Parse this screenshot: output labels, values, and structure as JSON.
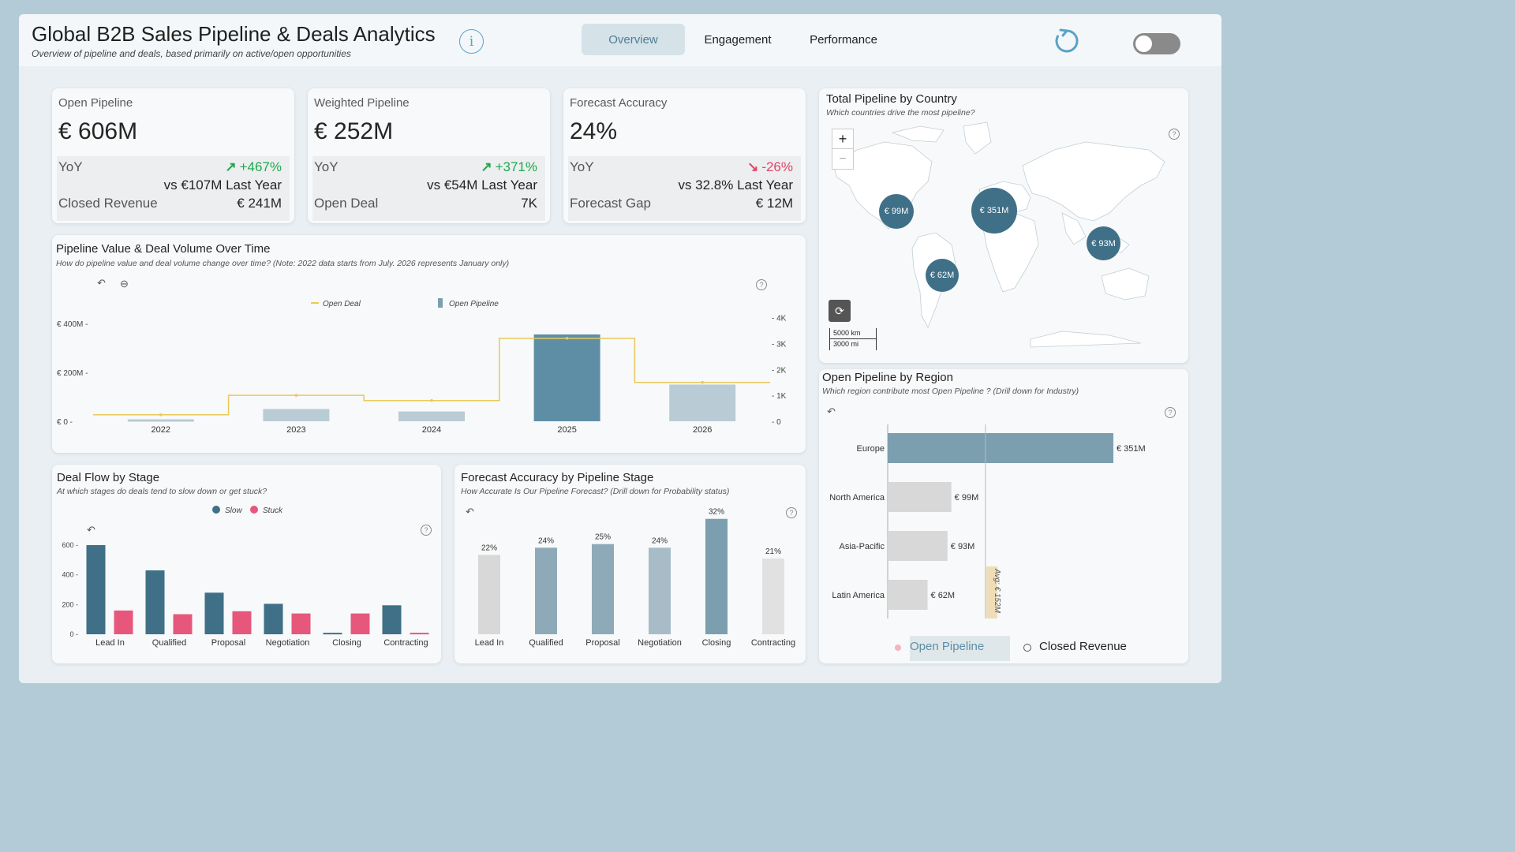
{
  "header": {
    "title": "Global B2B Sales Pipeline & Deals Analytics",
    "subtitle": "Overview of pipeline and deals, based primarily on active/open opportunities",
    "info_glyph": "i",
    "tabs": [
      {
        "label": "Overview",
        "active": true
      },
      {
        "label": "Engagement",
        "active": false
      },
      {
        "label": "Performance",
        "active": false
      }
    ],
    "refresh_icon": "refresh-icon",
    "toggle_state": "off"
  },
  "colors": {
    "accent": "#5d8ea6",
    "teal_bar": "#3f7087",
    "pink": "#e7577c",
    "light_bar": "#b9cbd4",
    "grey_bar": "#d8d8d8",
    "up": "#1fa84f",
    "down": "#e0446a",
    "line": "#e8c95a"
  },
  "kpis": [
    {
      "label": "Open Pipeline",
      "value": "€ 606M",
      "yoy_label": "YoY",
      "yoy_change": "+467%",
      "direction": "up",
      "comparison": "vs €107M Last Year",
      "footer_label": "Closed Revenue",
      "footer_value": "€ 241M"
    },
    {
      "label": "Weighted Pipeline",
      "value": "€ 252M",
      "yoy_label": "YoY",
      "yoy_change": "+371%",
      "direction": "up",
      "comparison": "vs €54M Last Year",
      "footer_label": "Open Deal",
      "footer_value": "7K"
    },
    {
      "label": "Forecast Accuracy",
      "value": "24%",
      "yoy_label": "YoY",
      "yoy_change": "-26%",
      "direction": "down",
      "comparison": "vs 32.8% Last Year",
      "footer_label": "Forecast Gap",
      "footer_value": "€ 12M"
    }
  ],
  "pipeline_chart": {
    "title": "Pipeline Value & Deal Volume Over Time",
    "subtitle": "How do pipeline value and deal volume change over time? (Note: 2022 data starts from July. 2026 represents January only)",
    "legend_line": "Open Deal",
    "legend_bar": "Open Pipeline"
  },
  "map": {
    "title": "Total Pipeline by Country",
    "subtitle": "Which countries drive the most pipeline?",
    "zoom_in": "+",
    "zoom_out": "−",
    "scale_km": "5000 km",
    "scale_mi": "3000 mi",
    "bubbles": [
      "€ 99M",
      "€ 351M",
      "€ 93M",
      "€ 62M"
    ]
  },
  "deal_flow": {
    "title": "Deal Flow by Stage",
    "subtitle": "At which stages do deals tend to slow down or get stuck?"
  },
  "forecast_stage": {
    "title": "Forecast Accuracy by Pipeline Stage",
    "subtitle": "How Accurate Is Our Pipeline Forecast? (Drill down for Probability status)"
  },
  "region": {
    "title": "Open Pipeline by Region",
    "subtitle": "Which region contribute most Open Pipeline ? (Drill down for Industry)",
    "avg_label": "Avg: € 152M",
    "legend_open": "Open Pipeline",
    "legend_closed": "Closed Revenue"
  },
  "chart_data": [
    {
      "type": "bar",
      "title": "Pipeline Value & Deal Volume Over Time",
      "categories": [
        "2022",
        "2023",
        "2024",
        "2025",
        "2026"
      ],
      "series": [
        {
          "name": "Open Pipeline",
          "type": "bar",
          "axis": "left",
          "values": [
            8,
            50,
            40,
            355,
            150
          ]
        },
        {
          "name": "Open Deal",
          "type": "line",
          "axis": "right",
          "values": [
            250,
            1000,
            800,
            3200,
            1500
          ]
        }
      ],
      "ylim": [
        0,
        400
      ],
      "y2lim": [
        0,
        4000
      ],
      "yticks": [
        "€ 0",
        "€ 200M",
        "€ 400M"
      ],
      "y2ticks": [
        "0",
        "1K",
        "2K",
        "3K",
        "4K"
      ]
    },
    {
      "type": "bar",
      "title": "Deal Flow by Stage",
      "categories": [
        "Lead In",
        "Qualified",
        "Proposal",
        "Negotiation",
        "Closing",
        "Contracting"
      ],
      "series": [
        {
          "name": "Slow",
          "values": [
            600,
            430,
            280,
            205,
            10,
            195
          ]
        },
        {
          "name": "Stuck",
          "values": [
            160,
            135,
            155,
            140,
            140,
            10
          ]
        }
      ],
      "ylim": [
        0,
        600
      ],
      "yticks": [
        "0",
        "200",
        "400",
        "600"
      ]
    },
    {
      "type": "bar",
      "title": "Forecast Accuracy by Pipeline Stage",
      "categories": [
        "Lead In",
        "Qualified",
        "Proposal",
        "Negotiation",
        "Closing",
        "Contracting"
      ],
      "values": [
        22,
        24,
        25,
        24,
        32,
        21
      ],
      "labels": [
        "22%",
        "24%",
        "25%",
        "24%",
        "32%",
        "21%"
      ],
      "ylim": [
        0,
        35
      ]
    },
    {
      "type": "bar",
      "orientation": "horizontal",
      "title": "Open Pipeline by Region",
      "categories": [
        "Europe",
        "North America",
        "Asia-Pacific",
        "Latin America"
      ],
      "values": [
        351,
        99,
        93,
        62
      ],
      "labels": [
        "€ 351M",
        "€ 99M",
        "€ 93M",
        "€ 62M"
      ],
      "average": 152
    }
  ]
}
